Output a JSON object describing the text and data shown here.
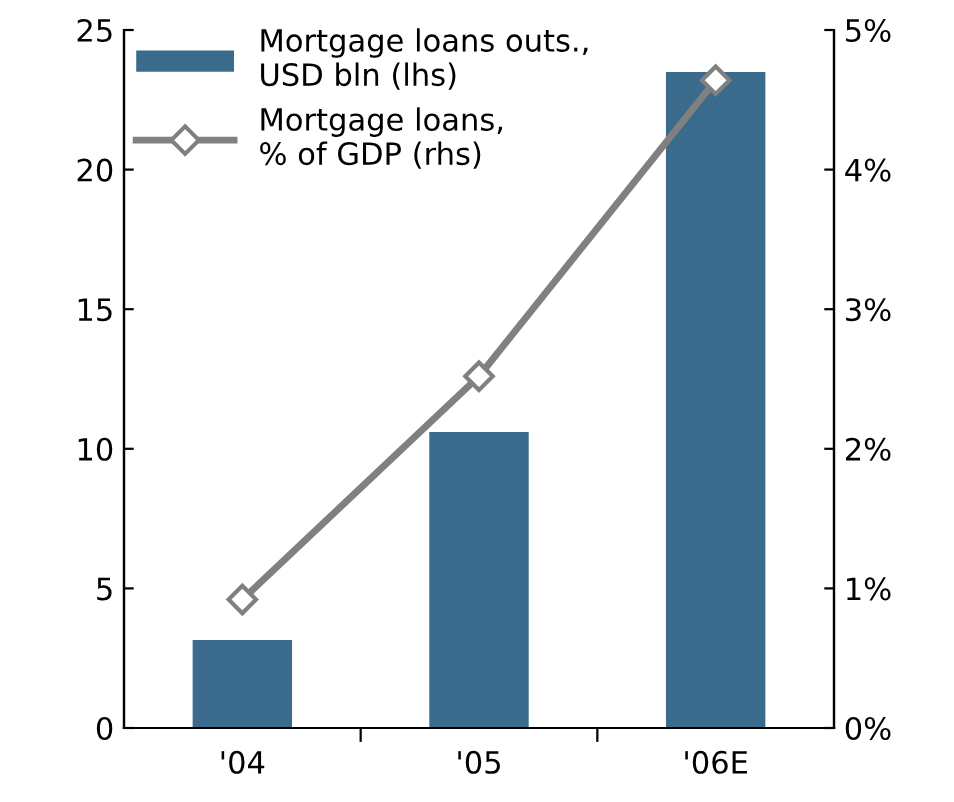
{
  "chart_data": {
    "type": "bar",
    "categories": [
      "'04",
      "'05",
      "'06E"
    ],
    "series": [
      {
        "name": "Mortgage loans outs.,\nUSD bln (lhs)",
        "color": "#3a6b8c",
        "values": [
          3.15,
          10.6,
          23.5
        ]
      },
      {
        "name": "Mortgage loans,\n% of GDP (rhs)",
        "type": "line",
        "axis": "y2",
        "color": "#808080",
        "marker": "diamond",
        "values": [
          0.92,
          2.52,
          4.64
        ]
      }
    ],
    "ylim": [
      0,
      25
    ],
    "yticks": [
      0,
      5,
      10,
      15,
      20,
      25
    ],
    "y2lim": [
      0,
      5
    ],
    "y2ticks": [
      {
        "value": 0,
        "label": "0%"
      },
      {
        "value": 1,
        "label": "1%"
      },
      {
        "value": 2,
        "label": "2%"
      },
      {
        "value": 3,
        "label": "3%"
      },
      {
        "value": 4,
        "label": "4%"
      },
      {
        "value": 5,
        "label": "5%"
      }
    ],
    "grid": false,
    "legend": "top left"
  }
}
